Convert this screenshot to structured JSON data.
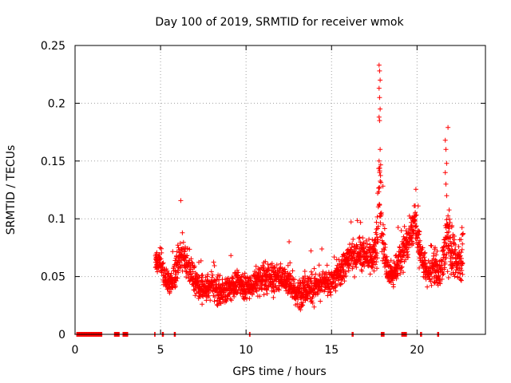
{
  "chart_data": {
    "type": "scatter",
    "title": "Day 100 of 2019, SRMTID for receiver wmok",
    "xlabel": "GPS time / hours",
    "ylabel": "SRMTID / TECUs",
    "xlim": [
      0,
      24
    ],
    "ylim": [
      0,
      0.25
    ],
    "xticks": [
      0,
      5,
      10,
      15,
      20
    ],
    "xtick_labels": [
      "0",
      "5",
      "10",
      "15",
      "20"
    ],
    "yticks": [
      0,
      0.05,
      0.1,
      0.15,
      0.2,
      0.25
    ],
    "ytick_labels": [
      "0",
      "0.05",
      "0.1",
      "0.15",
      "0.2",
      "0.25"
    ],
    "grid": true,
    "marker": "+",
    "color": "#ff0000",
    "zero_segments": [
      [
        0.1,
        1.6
      ],
      [
        2.3,
        2.6
      ],
      [
        2.8,
        3.1
      ],
      [
        4.65,
        4.7
      ],
      [
        5.1,
        5.2
      ],
      [
        5.8,
        5.9
      ],
      [
        10.2,
        10.25
      ],
      [
        16.2,
        16.3
      ],
      [
        17.9,
        18.1
      ],
      [
        19.1,
        19.4
      ],
      [
        20.2,
        20.3
      ],
      [
        21.2,
        21.3
      ]
    ],
    "series_profile": {
      "x": [
        4.7,
        5.0,
        5.2,
        5.5,
        5.8,
        6.0,
        6.3,
        6.6,
        7.0,
        7.5,
        8.0,
        8.5,
        9.0,
        9.5,
        10.0,
        10.5,
        11.0,
        11.5,
        12.0,
        12.5,
        13.0,
        13.5,
        14.0,
        14.5,
        15.0,
        15.5,
        16.0,
        16.3,
        16.5,
        17.0,
        17.3,
        17.6,
        17.8,
        18.0,
        18.3,
        18.6,
        19.0,
        19.3,
        19.6,
        19.9,
        20.1,
        20.4,
        20.7,
        21.0,
        21.3,
        21.6,
        21.8,
        22.0,
        22.3,
        22.7
      ],
      "y": [
        0.065,
        0.062,
        0.05,
        0.045,
        0.05,
        0.065,
        0.072,
        0.06,
        0.045,
        0.038,
        0.042,
        0.035,
        0.04,
        0.045,
        0.04,
        0.045,
        0.05,
        0.048,
        0.05,
        0.045,
        0.035,
        0.04,
        0.04,
        0.045,
        0.045,
        0.055,
        0.065,
        0.07,
        0.07,
        0.068,
        0.065,
        0.075,
        0.12,
        0.08,
        0.055,
        0.05,
        0.065,
        0.075,
        0.085,
        0.1,
        0.075,
        0.06,
        0.05,
        0.06,
        0.05,
        0.07,
        0.09,
        0.075,
        0.06,
        0.07
      ],
      "spread": [
        0.012,
        0.012,
        0.012,
        0.012,
        0.014,
        0.02,
        0.018,
        0.016,
        0.014,
        0.014,
        0.014,
        0.013,
        0.013,
        0.014,
        0.014,
        0.014,
        0.016,
        0.016,
        0.016,
        0.016,
        0.016,
        0.016,
        0.014,
        0.014,
        0.014,
        0.016,
        0.016,
        0.02,
        0.016,
        0.016,
        0.016,
        0.02,
        0.06,
        0.025,
        0.012,
        0.012,
        0.018,
        0.018,
        0.02,
        0.02,
        0.018,
        0.016,
        0.014,
        0.016,
        0.014,
        0.02,
        0.045,
        0.03,
        0.02,
        0.03
      ]
    }
  }
}
